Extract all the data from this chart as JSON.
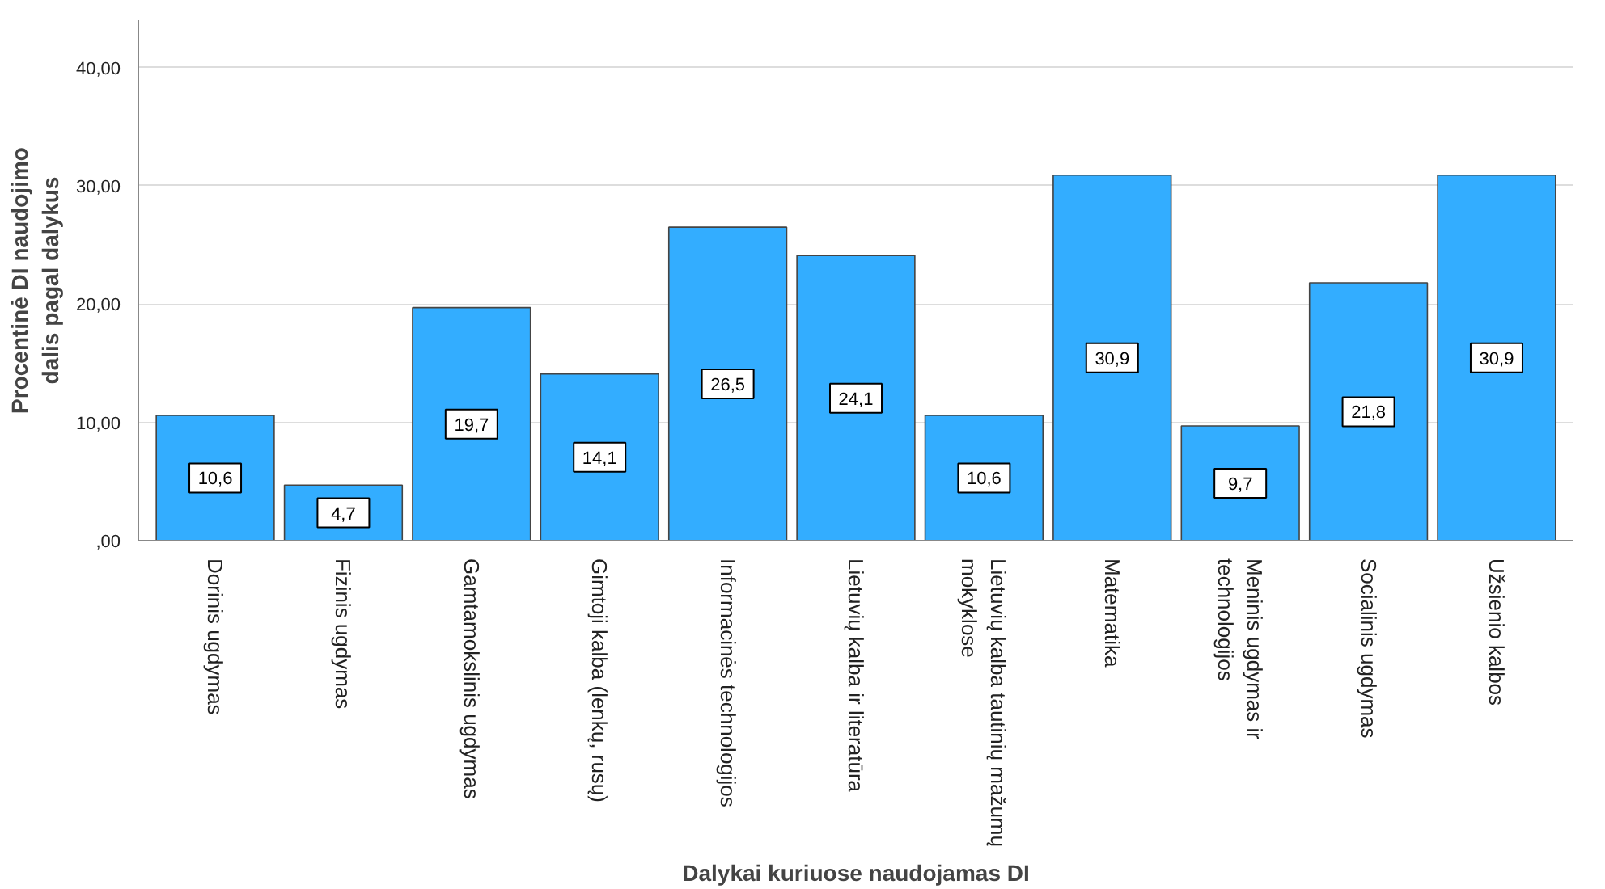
{
  "chart_data": {
    "type": "bar",
    "xlabel": "Dalykai kuriuose naudojamas DI",
    "ylabel": "Procentinė DI naudojimo\ndalis pagal dalykus",
    "categories": [
      "Dorinis ugdymas",
      "Fizinis ugdymas",
      "Gamtamokslinis ugdymas",
      "Gimtoji kalba (lenkų, rusų)",
      "Informacinės technologijos",
      "Lietuvių kalba ir literatūra",
      "Lietuvių kalba tautinių mažumų\nmokyklose",
      "Matematika",
      "Meninis ugdymas ir\ntechnologijos",
      "Socialinis ugdymas",
      "Užsienio kalbos"
    ],
    "values": [
      10.6,
      4.7,
      19.7,
      14.1,
      26.5,
      24.1,
      10.6,
      30.9,
      9.7,
      21.8,
      30.9
    ],
    "value_labels": [
      "10,6",
      "4,7",
      "19,7",
      "14,1",
      "26,5",
      "24,1",
      "10,6",
      "30,9",
      "9,7",
      "21,8",
      "30,9"
    ],
    "color": "#33adff",
    "ylim": [
      0,
      44
    ],
    "yticks": [
      {
        "value": 0,
        "label": ",00"
      },
      {
        "value": 10,
        "label": "10,00"
      },
      {
        "value": 20,
        "label": "20,00"
      },
      {
        "value": 30,
        "label": "30,00"
      },
      {
        "value": 40,
        "label": "40,00"
      }
    ],
    "grid": "y"
  }
}
